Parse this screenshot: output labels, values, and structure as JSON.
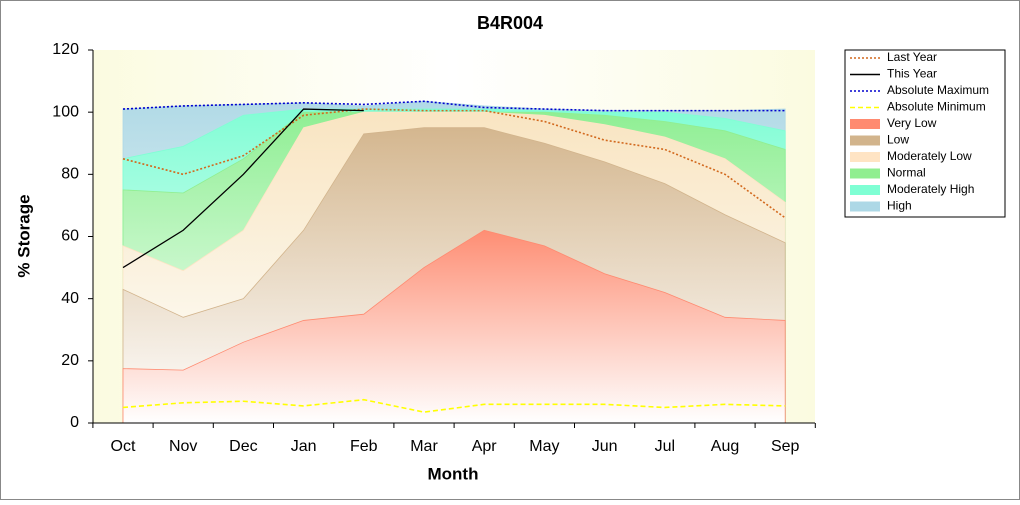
{
  "chart_data": {
    "type": "band-line",
    "title": "B4R004",
    "x_label": "Month",
    "y_label": "% Storage",
    "categories": [
      "Oct",
      "Nov",
      "Dec",
      "Jan",
      "Feb",
      "Mar",
      "Apr",
      "May",
      "Jun",
      "Jul",
      "Aug",
      "Sep"
    ],
    "ylim": [
      0,
      120
    ],
    "yticks": [
      0,
      20,
      40,
      60,
      80,
      100,
      120
    ],
    "series": [
      {
        "name": "Last Year",
        "style": "line",
        "dash": "dotted",
        "color": "#d2691e",
        "values": [
          85,
          80,
          86,
          99,
          101,
          100.5,
          100.5,
          97,
          91,
          88,
          80,
          66
        ]
      },
      {
        "name": "This Year",
        "style": "line",
        "dash": "solid",
        "color": "#000000",
        "values": [
          50,
          62,
          80,
          101,
          100.5,
          null,
          null,
          null,
          null,
          null,
          null,
          null
        ]
      },
      {
        "name": "Absolute Maximum",
        "style": "line",
        "dash": "dotted",
        "color": "#0000cd",
        "values": [
          101,
          102,
          102.5,
          103,
          102.5,
          103.5,
          101.5,
          101,
          100.5,
          100.5,
          100.5,
          100.5
        ]
      },
      {
        "name": "Absolute Minimum",
        "style": "line",
        "dash": "dashed",
        "color": "#ffff00",
        "values": [
          5,
          6.5,
          7,
          5.5,
          7.5,
          3.5,
          6,
          6,
          6,
          5,
          6,
          5.5
        ]
      },
      {
        "name": "Very Low",
        "style": "band",
        "color": "#ff8a70",
        "values": [
          17.5,
          17,
          26,
          33,
          35,
          50,
          62,
          57,
          48,
          42,
          34,
          33
        ]
      },
      {
        "name": "Low",
        "style": "band",
        "color": "#d2b48c",
        "values": [
          43,
          34,
          40,
          62,
          93,
          95,
          95,
          90,
          84,
          77,
          67,
          58
        ]
      },
      {
        "name": "Moderately Low",
        "style": "band",
        "color": "#ffe4c4",
        "values": [
          57,
          49,
          62,
          95,
          100,
          100,
          100,
          99,
          96,
          92,
          85,
          71
        ]
      },
      {
        "name": "Normal",
        "style": "band",
        "color": "#90ee90",
        "values": [
          75,
          74,
          85,
          100,
          100,
          100,
          100,
          100,
          99,
          97,
          94,
          88
        ]
      },
      {
        "name": "Moderately High",
        "style": "band",
        "color": "#7fffd4",
        "values": [
          85,
          89,
          99,
          101,
          101,
          101,
          101,
          100.5,
          100,
          100,
          98,
          94
        ]
      },
      {
        "name": "High",
        "style": "band",
        "color": "#add8e6",
        "values": [
          101,
          102,
          102.5,
          103,
          102,
          103.5,
          102,
          101,
          100.5,
          100.5,
          100.5,
          101
        ]
      }
    ]
  }
}
